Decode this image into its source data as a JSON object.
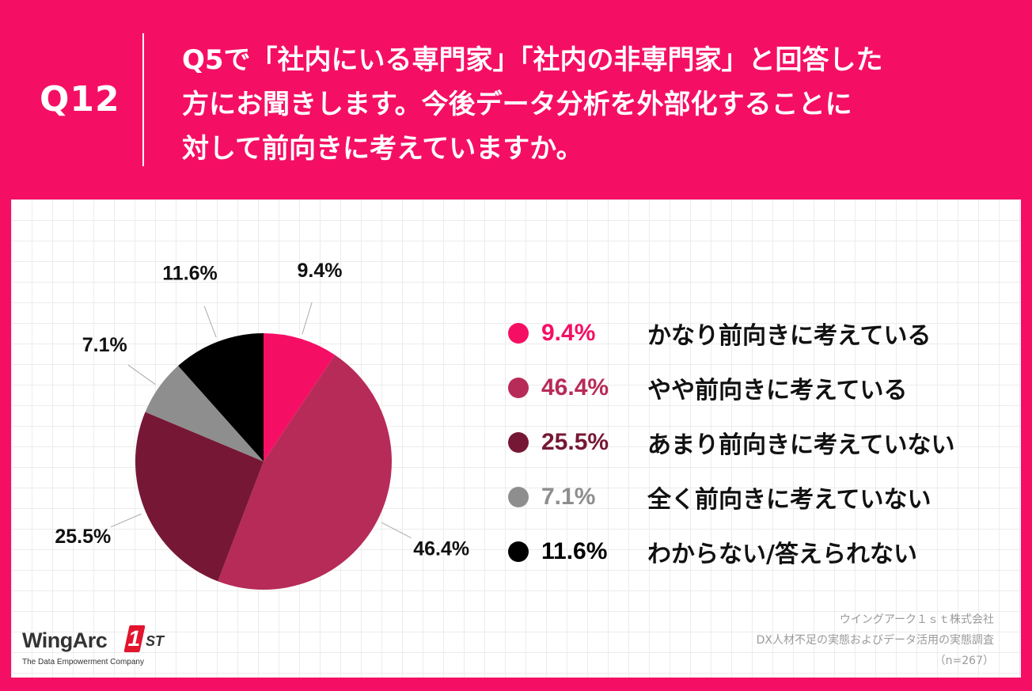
{
  "header": {
    "question_number": "Q12",
    "question_lines": [
      "Q5で「社内にいる専門家」「社内の非専門家」と回答した",
      "方にお聞きします。今後データ分析を外部化することに",
      "対して前向きに考えていますか。"
    ]
  },
  "chart_data": {
    "type": "pie",
    "title": "",
    "start_angle_deg": 0,
    "direction": "clockwise",
    "slices": [
      {
        "label": "かなり前向きに考えている",
        "value": 9.4,
        "display": "9.4%",
        "color": "#f50f64"
      },
      {
        "label": "やや前向きに考えている",
        "value": 46.4,
        "display": "46.4%",
        "color": "#b72b58"
      },
      {
        "label": "あまり前向きに考えていない",
        "value": 25.5,
        "display": "25.5%",
        "color": "#761835"
      },
      {
        "label": "全く前向きに考えていない",
        "value": 7.1,
        "display": "7.1%",
        "color": "#8e8e8e"
      },
      {
        "label": "わからない/答えられない",
        "value": 11.6,
        "display": "11.6%",
        "color": "#000000"
      }
    ],
    "legend_position": "right"
  },
  "logo": {
    "wordmark": "WingArc",
    "mark": "1",
    "suffix": "ST",
    "tagline": "The Data Empowerment Company"
  },
  "source": {
    "lines": [
      "ウイングアーク１ｓｔ株式会社",
      "DX人材不足の実態およびデータ活用の実態調査",
      "（n=267）"
    ]
  }
}
